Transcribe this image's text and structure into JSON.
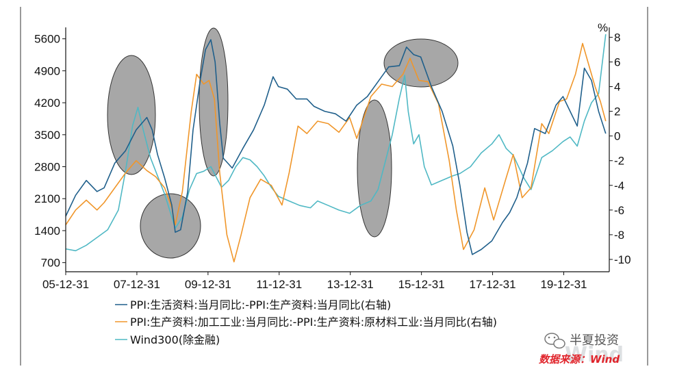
{
  "chart_data": {
    "type": "line",
    "title": "",
    "x_ticks": [
      "05-12-31",
      "07-12-31",
      "09-12-31",
      "11-12-31",
      "13-12-31",
      "15-12-31",
      "17-12-31",
      "19-12-31"
    ],
    "x_range": [
      2005.92,
      2021.2
    ],
    "left_axis": {
      "ticks": [
        700,
        1400,
        2100,
        2800,
        3500,
        4200,
        4900,
        5600
      ],
      "range": [
        500,
        5850
      ]
    },
    "right_axis": {
      "unit": "%",
      "ticks": [
        -10,
        -8,
        -6,
        -4,
        -2,
        0,
        2,
        4,
        6,
        8
      ],
      "range": [
        -11,
        8.8
      ]
    },
    "series": [
      {
        "name": "PPI:生活资料:当月同比:-PPI:生产资料:当月同比(右轴)",
        "axis": "right",
        "color": "#1f5f8b",
        "points": [
          [
            2005.92,
            -6.5
          ],
          [
            2006.2,
            -4.8
          ],
          [
            2006.5,
            -3.6
          ],
          [
            2006.8,
            -4.5
          ],
          [
            2007.0,
            -4.2
          ],
          [
            2007.3,
            -2.2
          ],
          [
            2007.6,
            -1.2
          ],
          [
            2007.9,
            0.5
          ],
          [
            2008.2,
            1.5
          ],
          [
            2008.35,
            0.5
          ],
          [
            2008.5,
            -1.5
          ],
          [
            2008.7,
            -3.4
          ],
          [
            2008.9,
            -5.6
          ],
          [
            2009.0,
            -7.8
          ],
          [
            2009.15,
            -7.6
          ],
          [
            2009.35,
            -4.5
          ],
          [
            2009.5,
            0.5
          ],
          [
            2009.7,
            4.5
          ],
          [
            2009.85,
            7.0
          ],
          [
            2010.0,
            7.8
          ],
          [
            2010.12,
            6.0
          ],
          [
            2010.25,
            1.0
          ],
          [
            2010.35,
            -1.8
          ],
          [
            2010.6,
            -2.6
          ],
          [
            2010.9,
            -1.0
          ],
          [
            2011.2,
            0.5
          ],
          [
            2011.5,
            2.5
          ],
          [
            2011.75,
            4.8
          ],
          [
            2011.9,
            4.0
          ],
          [
            2012.15,
            3.8
          ],
          [
            2012.4,
            3.0
          ],
          [
            2012.7,
            3.0
          ],
          [
            2012.9,
            2.4
          ],
          [
            2013.2,
            2.0
          ],
          [
            2013.5,
            1.8
          ],
          [
            2013.8,
            1.2
          ],
          [
            2014.1,
            2.5
          ],
          [
            2014.4,
            3.2
          ],
          [
            2014.7,
            4.4
          ],
          [
            2015.0,
            5.6
          ],
          [
            2015.3,
            5.7
          ],
          [
            2015.5,
            7.2
          ],
          [
            2015.7,
            6.6
          ],
          [
            2015.9,
            6.4
          ],
          [
            2016.2,
            4.0
          ],
          [
            2016.5,
            2.0
          ],
          [
            2016.8,
            -0.8
          ],
          [
            2017.0,
            -4.0
          ],
          [
            2017.2,
            -7.8
          ],
          [
            2017.35,
            -9.6
          ],
          [
            2017.6,
            -9.2
          ],
          [
            2017.9,
            -8.5
          ],
          [
            2018.2,
            -7.0
          ],
          [
            2018.4,
            -6.2
          ],
          [
            2018.6,
            -5.0
          ],
          [
            2018.9,
            -2.2
          ],
          [
            2019.1,
            0.6
          ],
          [
            2019.4,
            0.2
          ],
          [
            2019.7,
            2.5
          ],
          [
            2019.9,
            3.2
          ],
          [
            2020.1,
            2.0
          ],
          [
            2020.3,
            0.8
          ],
          [
            2020.5,
            5.5
          ],
          [
            2020.7,
            4.5
          ],
          [
            2020.9,
            2.0
          ],
          [
            2021.1,
            0.2
          ]
        ]
      },
      {
        "name": "PPI:生产资料:加工工业:当月同比:-PPI:生产资料:原材料工业:当月同比(右轴)",
        "axis": "right",
        "color": "#f0962a",
        "points": [
          [
            2005.92,
            -7.2
          ],
          [
            2006.2,
            -6.0
          ],
          [
            2006.5,
            -5.2
          ],
          [
            2006.8,
            -6.0
          ],
          [
            2007.0,
            -5.4
          ],
          [
            2007.3,
            -4.2
          ],
          [
            2007.6,
            -3.0
          ],
          [
            2007.9,
            -2.0
          ],
          [
            2008.2,
            -2.8
          ],
          [
            2008.45,
            -3.3
          ],
          [
            2008.7,
            -4.2
          ],
          [
            2008.9,
            -5.8
          ],
          [
            2009.0,
            -7.2
          ],
          [
            2009.2,
            -4.5
          ],
          [
            2009.45,
            2.0
          ],
          [
            2009.6,
            5.0
          ],
          [
            2009.8,
            4.2
          ],
          [
            2009.95,
            4.5
          ],
          [
            2010.1,
            3.0
          ],
          [
            2010.25,
            -3.0
          ],
          [
            2010.45,
            -8.0
          ],
          [
            2010.65,
            -10.2
          ],
          [
            2010.85,
            -8.0
          ],
          [
            2011.1,
            -5.0
          ],
          [
            2011.4,
            -3.5
          ],
          [
            2011.7,
            -4.0
          ],
          [
            2012.0,
            -5.6
          ],
          [
            2012.2,
            -3.0
          ],
          [
            2012.45,
            0.8
          ],
          [
            2012.7,
            0.2
          ],
          [
            2013.0,
            1.2
          ],
          [
            2013.3,
            1.0
          ],
          [
            2013.6,
            0.3
          ],
          [
            2013.9,
            1.5
          ],
          [
            2014.1,
            -0.2
          ],
          [
            2014.3,
            1.5
          ],
          [
            2014.5,
            3.2
          ],
          [
            2014.8,
            4.2
          ],
          [
            2015.1,
            4.0
          ],
          [
            2015.4,
            5.0
          ],
          [
            2015.6,
            6.3
          ],
          [
            2015.85,
            4.5
          ],
          [
            2016.1,
            4.4
          ],
          [
            2016.4,
            2.6
          ],
          [
            2016.7,
            -2.0
          ],
          [
            2016.9,
            -6.0
          ],
          [
            2017.1,
            -9.2
          ],
          [
            2017.4,
            -7.6
          ],
          [
            2017.7,
            -4.2
          ],
          [
            2017.95,
            -6.8
          ],
          [
            2018.3,
            -3.4
          ],
          [
            2018.5,
            -1.5
          ],
          [
            2018.75,
            -5.0
          ],
          [
            2019.0,
            -4.2
          ],
          [
            2019.3,
            1.0
          ],
          [
            2019.5,
            0.2
          ],
          [
            2019.8,
            2.8
          ],
          [
            2020.0,
            3.0
          ],
          [
            2020.25,
            5.0
          ],
          [
            2020.45,
            7.5
          ],
          [
            2020.6,
            6.0
          ],
          [
            2020.8,
            4.0
          ],
          [
            2020.95,
            2.8
          ],
          [
            2021.1,
            1.2
          ]
        ]
      },
      {
        "name": "Wind300(除金融)",
        "axis": "left",
        "color": "#4fb8c4",
        "points": [
          [
            2005.92,
            1000
          ],
          [
            2006.2,
            960
          ],
          [
            2006.5,
            1080
          ],
          [
            2006.8,
            1250
          ],
          [
            2007.1,
            1420
          ],
          [
            2007.4,
            1850
          ],
          [
            2007.6,
            2700
          ],
          [
            2007.8,
            3700
          ],
          [
            2007.95,
            4100
          ],
          [
            2008.1,
            3600
          ],
          [
            2008.3,
            3000
          ],
          [
            2008.5,
            2600
          ],
          [
            2008.7,
            2200
          ],
          [
            2008.9,
            1700
          ],
          [
            2009.0,
            1450
          ],
          [
            2009.2,
            1700
          ],
          [
            2009.4,
            2300
          ],
          [
            2009.6,
            2650
          ],
          [
            2009.8,
            2700
          ],
          [
            2010.0,
            2800
          ],
          [
            2010.3,
            2350
          ],
          [
            2010.5,
            2500
          ],
          [
            2010.7,
            2800
          ],
          [
            2010.9,
            3000
          ],
          [
            2011.1,
            2950
          ],
          [
            2011.3,
            2800
          ],
          [
            2011.5,
            2600
          ],
          [
            2011.7,
            2350
          ],
          [
            2011.9,
            2150
          ],
          [
            2012.2,
            2050
          ],
          [
            2012.5,
            1950
          ],
          [
            2012.8,
            1900
          ],
          [
            2013.0,
            2050
          ],
          [
            2013.3,
            1950
          ],
          [
            2013.6,
            1850
          ],
          [
            2013.9,
            1780
          ],
          [
            2014.2,
            1950
          ],
          [
            2014.5,
            2050
          ],
          [
            2014.7,
            2300
          ],
          [
            2014.9,
            2900
          ],
          [
            2015.1,
            3500
          ],
          [
            2015.3,
            4300
          ],
          [
            2015.45,
            4800
          ],
          [
            2015.55,
            4000
          ],
          [
            2015.7,
            3300
          ],
          [
            2015.85,
            3500
          ],
          [
            2016.0,
            2800
          ],
          [
            2016.2,
            2400
          ],
          [
            2016.5,
            2500
          ],
          [
            2016.8,
            2600
          ],
          [
            2017.0,
            2650
          ],
          [
            2017.3,
            2800
          ],
          [
            2017.6,
            3100
          ],
          [
            2017.9,
            3300
          ],
          [
            2018.1,
            3500
          ],
          [
            2018.3,
            3200
          ],
          [
            2018.5,
            3050
          ],
          [
            2018.8,
            2550
          ],
          [
            2019.0,
            2300
          ],
          [
            2019.3,
            3000
          ],
          [
            2019.6,
            3150
          ],
          [
            2019.9,
            3350
          ],
          [
            2020.1,
            3450
          ],
          [
            2020.3,
            3250
          ],
          [
            2020.5,
            3800
          ],
          [
            2020.7,
            4200
          ],
          [
            2020.9,
            4400
          ],
          [
            2021.1,
            5700
          ]
        ]
      }
    ]
  },
  "legend": {
    "items": [
      "PPI:生活资料:当月同比:-PPI:生产资料:当月同比(右轴)",
      "PPI:生产资料:加工工业:当月同比:-PPI:生产资料:原材料工业:当月同比(右轴)",
      "Wind300(除金融)"
    ]
  },
  "watermark": {
    "brand": "半夏投资",
    "source": "数据来源：Wind",
    "bg_text": "Wind"
  },
  "colors": {
    "axis": "#111111",
    "ellipse_fill": "#8a8a8a",
    "source_text": "#e0242b"
  }
}
